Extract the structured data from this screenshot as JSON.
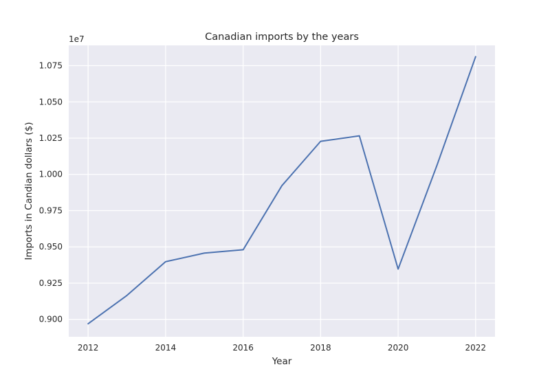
{
  "chart_data": {
    "type": "line",
    "title": "Canadian imports by the years",
    "xlabel": "Year",
    "ylabel": "Imports in Candian dollars ($)",
    "y_offset_label": "1e7",
    "x": [
      2012,
      2013,
      2014,
      2015,
      2016,
      2017,
      2018,
      2019,
      2020,
      2021,
      2022
    ],
    "series": [
      {
        "values": [
          8970000,
          9165000,
          9398000,
          9457000,
          9480000,
          9922000,
          10228000,
          10266000,
          9347000,
          10061000,
          10812000
        ]
      }
    ],
    "xlim": [
      2011.5,
      2022.5
    ],
    "ylim": [
      8880000,
      10890000
    ],
    "x_ticks": [
      2012,
      2014,
      2016,
      2018,
      2020,
      2022
    ],
    "x_tick_labels": [
      "2012",
      "2014",
      "2016",
      "2018",
      "2020",
      "2022"
    ],
    "y_ticks": [
      9000000,
      9250000,
      9500000,
      9750000,
      10000000,
      10250000,
      10500000,
      10750000
    ],
    "y_tick_labels": [
      "0.900",
      "0.925",
      "0.950",
      "0.975",
      "1.000",
      "1.025",
      "1.050",
      "1.075"
    ],
    "grid": true,
    "colors": {
      "series": "#4c72b0",
      "plot_background": "#eaeaf2",
      "grid": "#ffffff",
      "text": "#262626"
    }
  }
}
